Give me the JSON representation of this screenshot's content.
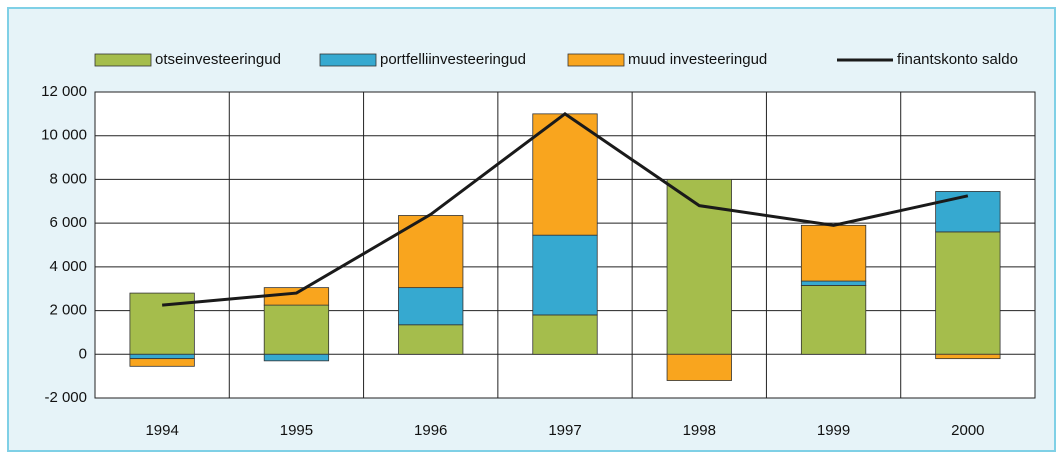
{
  "chart_data": {
    "type": "bar",
    "categories": [
      "1994",
      "1995",
      "1996",
      "1997",
      "1998",
      "1999",
      "2000"
    ],
    "series": [
      {
        "name": "otseinvesteeringud",
        "color": "#a5bd4c",
        "values": [
          2800,
          2250,
          1350,
          1800,
          8000,
          3150,
          5600
        ]
      },
      {
        "name": "portfelliinvesteeringud",
        "color": "#36a9d0",
        "values": [
          -200,
          -300,
          1700,
          3650,
          0,
          200,
          1850
        ]
      },
      {
        "name": "muud investeeringud",
        "color": "#f9a51e",
        "values": [
          -350,
          800,
          3300,
          5550,
          -1200,
          2550,
          -200
        ]
      },
      {
        "name": "finantskonto saldo",
        "type": "line",
        "color": "#1a1a1a",
        "values": [
          2250,
          2800,
          6400,
          11000,
          6800,
          5900,
          7250
        ]
      }
    ],
    "ylim": [
      -2000,
      12000
    ],
    "yticks": [
      {
        "value": -2000,
        "label": "-2 000"
      },
      0,
      {
        "value": 2000,
        "label": "2 000"
      },
      {
        "value": 4000,
        "label": "4 000"
      },
      {
        "value": 6000,
        "label": "6 000"
      },
      {
        "value": 8000,
        "label": "8 000"
      },
      {
        "value": 10000,
        "label": "10 000"
      },
      {
        "value": 12000,
        "label": "12 000"
      }
    ],
    "grid": true,
    "legend": "top"
  }
}
